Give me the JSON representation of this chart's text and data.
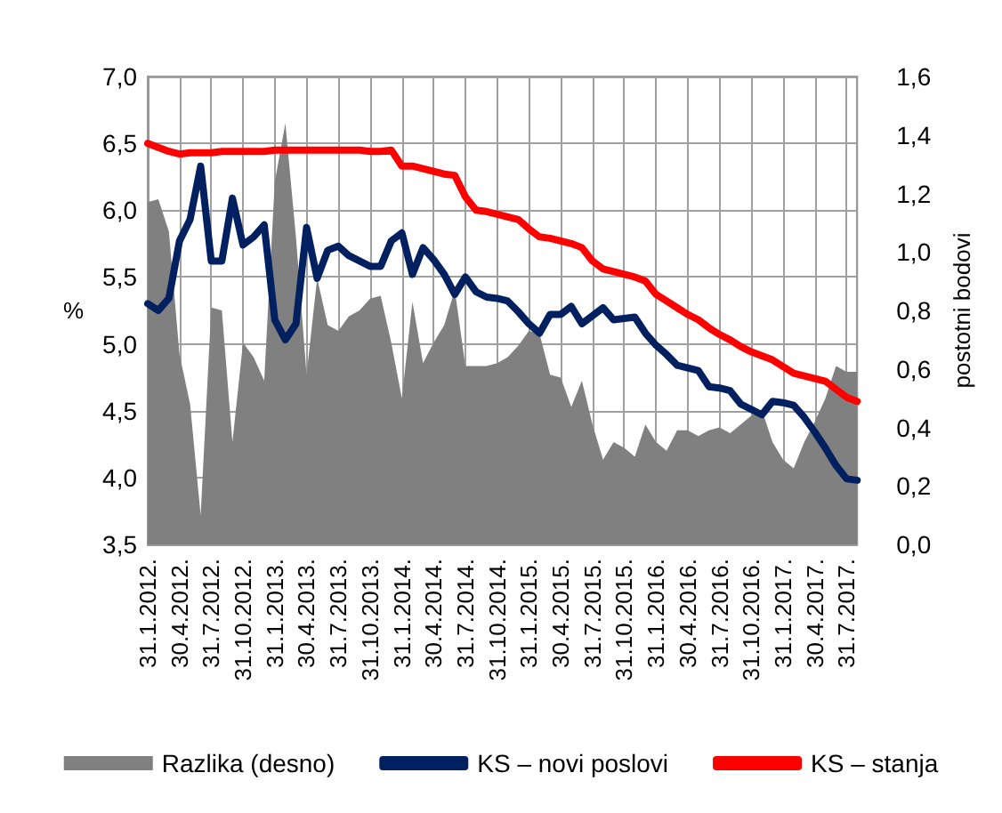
{
  "chart_data": {
    "type": "line",
    "ylabel": "%",
    "y2label": "postotni bodovi",
    "categories": [
      "31.1.2012.",
      null,
      null,
      "30.4.2012.",
      null,
      null,
      "31.7.2012.",
      null,
      null,
      "31.10.2012.",
      null,
      null,
      "31.1.2013.",
      null,
      null,
      "30.4.2013.",
      null,
      null,
      "31.7.2013.",
      null,
      null,
      "31.10.2013.",
      null,
      null,
      "31.1.2014.",
      null,
      null,
      "30.4.2014.",
      null,
      null,
      "31.7.2014.",
      null,
      null,
      "31.10.2014.",
      null,
      null,
      "31.1.2015.",
      null,
      null,
      "30.4.2015.",
      null,
      null,
      "31.7.2015.",
      null,
      null,
      "31.10.2015.",
      null,
      null,
      "31.1.2016.",
      null,
      null,
      "30.4.2016.",
      null,
      null,
      "31.7.2016.",
      null,
      null,
      "31.10.2016.",
      null,
      null,
      "31.1.2017.",
      null,
      null,
      "30.4.2017.",
      null,
      null,
      "31.7.2017.",
      null
    ],
    "series": [
      {
        "name": "Razlika (desno)",
        "type": "area",
        "axis": "y2",
        "color": "#808080",
        "values": [
          1.17,
          1.18,
          1.07,
          0.65,
          0.48,
          0.1,
          0.81,
          0.8,
          0.35,
          0.69,
          0.64,
          0.56,
          1.24,
          1.44,
          1.05,
          0.58,
          0.91,
          0.75,
          0.73,
          0.78,
          0.8,
          0.84,
          0.85,
          0.69,
          0.5,
          0.83,
          0.62,
          0.69,
          0.75,
          0.87,
          0.61,
          0.61,
          0.61,
          0.62,
          0.64,
          0.68,
          0.73,
          0.72,
          0.58,
          0.57,
          0.47,
          0.56,
          0.41,
          0.29,
          0.35,
          0.33,
          0.3,
          0.41,
          0.35,
          0.32,
          0.39,
          0.39,
          0.37,
          0.39,
          0.4,
          0.38,
          0.41,
          0.44,
          0.46,
          0.35,
          0.29,
          0.26,
          0.35,
          0.42,
          0.5,
          0.61,
          0.59,
          0.59
        ]
      },
      {
        "name": "KS – novi poslovi",
        "color": "#002060",
        "values": [
          5.3,
          5.25,
          5.34,
          5.77,
          5.93,
          6.33,
          5.62,
          5.62,
          6.09,
          5.74,
          5.8,
          5.89,
          5.18,
          5.03,
          5.15,
          5.87,
          5.49,
          5.7,
          5.73,
          5.66,
          5.62,
          5.58,
          5.58,
          5.77,
          5.83,
          5.52,
          5.72,
          5.63,
          5.52,
          5.37,
          5.5,
          5.39,
          5.35,
          5.34,
          5.32,
          5.24,
          5.15,
          5.08,
          5.22,
          5.22,
          5.28,
          5.15,
          5.21,
          5.27,
          5.18,
          5.19,
          5.2,
          5.08,
          4.99,
          4.92,
          4.84,
          4.82,
          4.8,
          4.68,
          4.67,
          4.65,
          4.55,
          4.51,
          4.47,
          4.57,
          4.56,
          4.54,
          4.45,
          4.34,
          4.22,
          4.09,
          3.99,
          3.98
        ]
      },
      {
        "name": "KS – stanja",
        "color": "#ff0000",
        "values": [
          6.5,
          6.47,
          6.44,
          6.42,
          6.43,
          6.43,
          6.43,
          6.44,
          6.44,
          6.44,
          6.44,
          6.44,
          6.45,
          6.45,
          6.45,
          6.45,
          6.45,
          6.45,
          6.45,
          6.45,
          6.45,
          6.44,
          6.44,
          6.45,
          6.33,
          6.33,
          6.31,
          6.29,
          6.27,
          6.26,
          6.1,
          6.0,
          5.99,
          5.97,
          5.95,
          5.93,
          5.86,
          5.8,
          5.79,
          5.77,
          5.75,
          5.72,
          5.62,
          5.56,
          5.54,
          5.52,
          5.5,
          5.47,
          5.37,
          5.32,
          5.27,
          5.22,
          5.18,
          5.12,
          5.07,
          5.03,
          4.98,
          4.94,
          4.91,
          4.88,
          4.83,
          4.78,
          4.76,
          4.74,
          4.72,
          4.66,
          4.6,
          4.57
        ]
      }
    ],
    "ylim": [
      3.5,
      7.0
    ],
    "yticks": [
      {
        "value": 3.5,
        "label": "3,5"
      },
      {
        "value": 4.0,
        "label": "4,0"
      },
      {
        "value": 4.5,
        "label": "4,5"
      },
      {
        "value": 5.0,
        "label": "5,0"
      },
      {
        "value": 5.5,
        "label": "5,5"
      },
      {
        "value": 6.0,
        "label": "6,0"
      },
      {
        "value": 6.5,
        "label": "6,5"
      },
      {
        "value": 7.0,
        "label": "7,0"
      }
    ],
    "y2lim": [
      0,
      1.6
    ],
    "y2ticks": [
      {
        "value": 0,
        "label": "0,0"
      },
      {
        "value": 0.2,
        "label": "0,2"
      },
      {
        "value": 0.4,
        "label": "0,4"
      },
      {
        "value": 0.6,
        "label": "0,6"
      },
      {
        "value": 0.8,
        "label": "0,8"
      },
      {
        "value": 1.0,
        "label": "1,0"
      },
      {
        "value": 1.2,
        "label": "1,2"
      },
      {
        "value": 1.4,
        "label": "1,4"
      },
      {
        "value": 1.6,
        "label": "1,6"
      }
    ],
    "grid": true,
    "legend": "bottom",
    "marker": "none",
    "line_style": "solid"
  }
}
